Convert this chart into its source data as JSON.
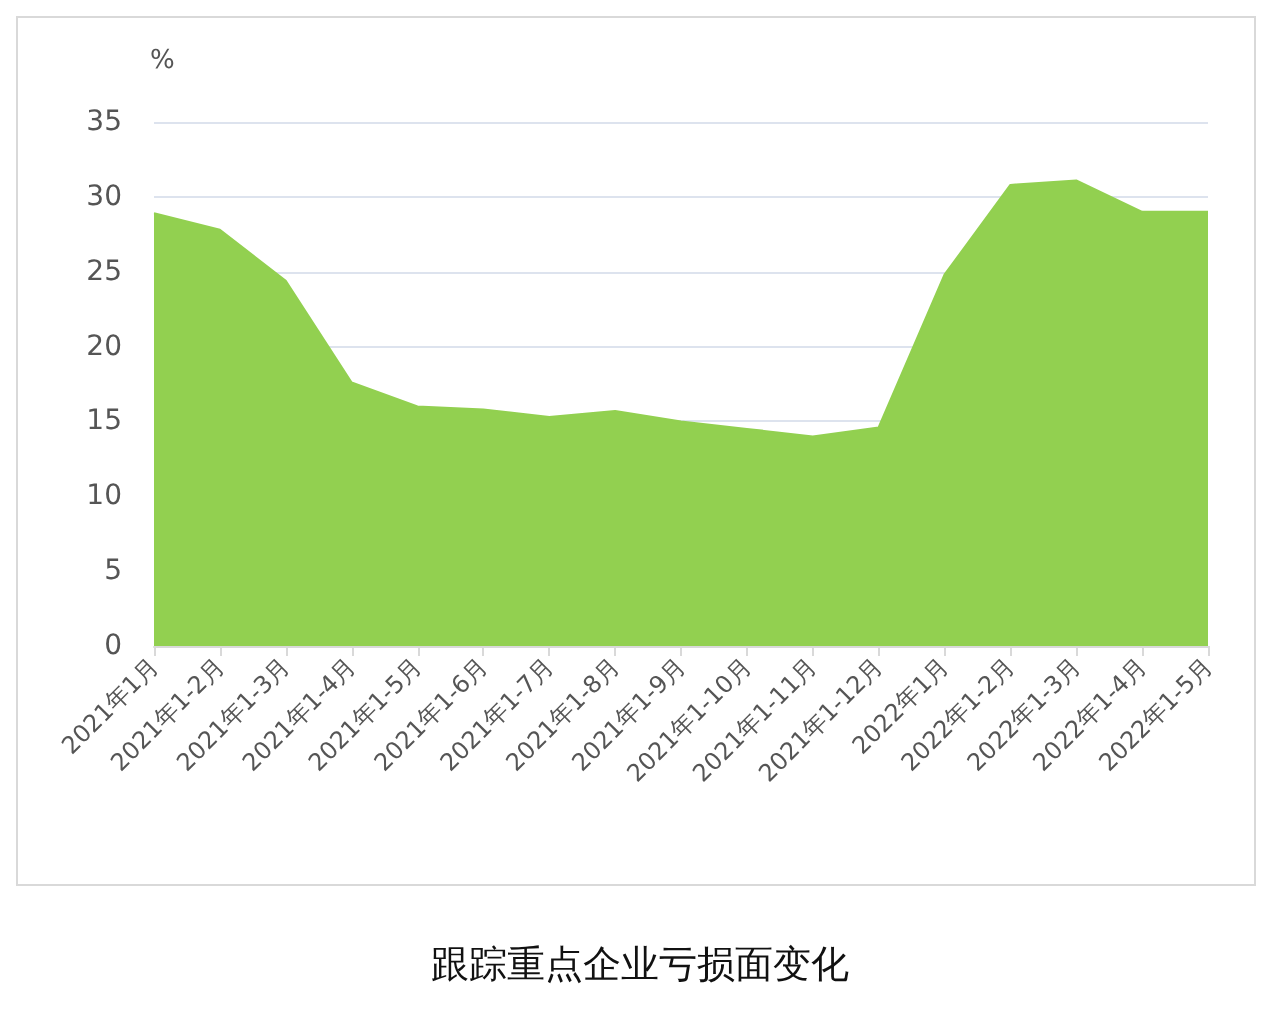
{
  "chart_data": {
    "type": "area",
    "title": "跟踪重点企业亏损面变化",
    "ylabel": "%",
    "categories": [
      "2021年1月",
      "2021年1-2月",
      "2021年1-3月",
      "2021年1-4月",
      "2021年1-5月",
      "2021年1-6月",
      "2021年1-7月",
      "2021年1-8月",
      "2021年1-9月",
      "2021年1-10月",
      "2021年1-11月",
      "2021年1-12月",
      "2022年1月",
      "2022年1-2月",
      "2022年1-3月",
      "2022年1-4月",
      "2022年1-5月"
    ],
    "series": [
      {
        "color": "#92d050",
        "values": [
          28.9,
          27.8,
          24.4,
          17.6,
          16.0,
          15.8,
          15.3,
          15.7,
          15.0,
          14.5,
          14.0,
          14.6,
          24.8,
          30.8,
          31.1,
          29.0,
          29.0
        ]
      }
    ],
    "ylim": [
      0,
      35
    ],
    "yticks": [
      0,
      5,
      10,
      15,
      20,
      25,
      30,
      35
    ],
    "grid": "y"
  }
}
